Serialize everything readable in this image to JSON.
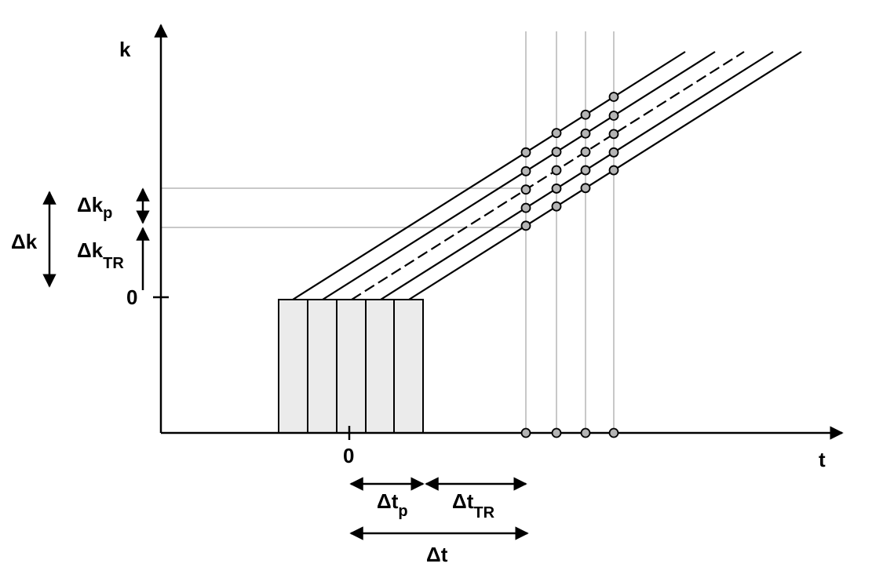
{
  "axes": {
    "y_label": "k",
    "x_label": "t",
    "y_origin": "0",
    "x_origin": "0"
  },
  "annotations": [
    {
      "text": "Δk"
    },
    {
      "text": "Δk",
      "subscript": "p"
    },
    {
      "text": "Δk",
      "subscript": "TR"
    },
    {
      "text": "Δt",
      "subscript": "p"
    },
    {
      "text": "Δt",
      "subscript": "TR"
    },
    {
      "text": "Δt"
    }
  ]
}
